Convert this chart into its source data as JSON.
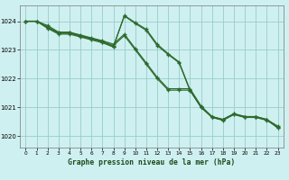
{
  "title": "Graphe pression niveau de la mer (hPa)",
  "bg_color": "#cff0f0",
  "grid_color": "#99cccc",
  "line_color": "#2d6a2d",
  "xlim": [
    -0.5,
    23.5
  ],
  "ylim": [
    1019.6,
    1024.55
  ],
  "yticks": [
    1020,
    1021,
    1022,
    1023,
    1024
  ],
  "xticks": [
    0,
    1,
    2,
    3,
    4,
    5,
    6,
    7,
    8,
    9,
    10,
    11,
    12,
    13,
    14,
    15,
    16,
    17,
    18,
    19,
    20,
    21,
    22,
    23
  ],
  "series": [
    {
      "x": [
        0,
        1,
        2,
        3,
        4,
        5,
        6,
        7,
        8,
        9,
        10,
        11,
        12,
        13,
        14,
        15,
        16,
        17,
        18,
        19,
        20,
        21,
        22,
        23
      ],
      "y": [
        1024.0,
        1024.0,
        1023.75,
        1023.55,
        1023.55,
        1023.45,
        1023.35,
        1023.25,
        1023.1,
        1024.2,
        1023.95,
        1023.72,
        1023.2,
        1022.87,
        1022.58,
        1021.6,
        1021.0,
        1020.68,
        1020.58,
        1020.78,
        1020.68,
        1020.68,
        1020.58,
        1020.28
      ]
    },
    {
      "x": [
        0,
        1,
        2,
        3,
        4,
        5,
        6,
        7,
        8,
        9,
        10,
        11,
        12,
        13,
        14,
        15,
        16,
        17,
        18,
        19,
        20,
        21,
        22,
        23
      ],
      "y": [
        1024.0,
        1024.0,
        1023.8,
        1023.6,
        1023.6,
        1023.5,
        1023.4,
        1023.3,
        1023.15,
        1023.5,
        1023.0,
        1022.5,
        1022.0,
        1021.6,
        1021.6,
        1021.6,
        1021.0,
        1020.65,
        1020.55,
        1020.75,
        1020.65,
        1020.65,
        1020.55,
        1020.32
      ]
    },
    {
      "x": [
        0,
        1,
        2,
        3,
        4,
        5,
        6,
        7,
        8,
        9,
        10,
        11,
        12,
        13,
        14,
        15,
        16,
        17,
        18,
        19,
        20,
        21,
        22,
        23
      ],
      "y": [
        1024.0,
        1024.0,
        1023.85,
        1023.62,
        1023.62,
        1023.52,
        1023.42,
        1023.32,
        1023.2,
        1023.55,
        1023.05,
        1022.55,
        1022.05,
        1021.65,
        1021.65,
        1021.65,
        1021.05,
        1020.68,
        1020.58,
        1020.78,
        1020.68,
        1020.68,
        1020.58,
        1020.35
      ]
    },
    {
      "x": [
        0,
        1,
        2,
        3,
        4,
        5,
        6,
        7,
        8,
        9,
        10,
        11,
        12,
        13,
        14,
        15,
        16,
        17,
        18,
        19,
        20,
        21,
        22,
        23
      ],
      "y": [
        1024.0,
        1024.0,
        1023.78,
        1023.58,
        1023.58,
        1023.48,
        1023.38,
        1023.28,
        1023.12,
        1024.18,
        1023.92,
        1023.68,
        1023.15,
        1022.84,
        1022.55,
        1021.58,
        1021.02,
        1020.66,
        1020.56,
        1020.76,
        1020.66,
        1020.66,
        1020.56,
        1020.3
      ]
    }
  ]
}
